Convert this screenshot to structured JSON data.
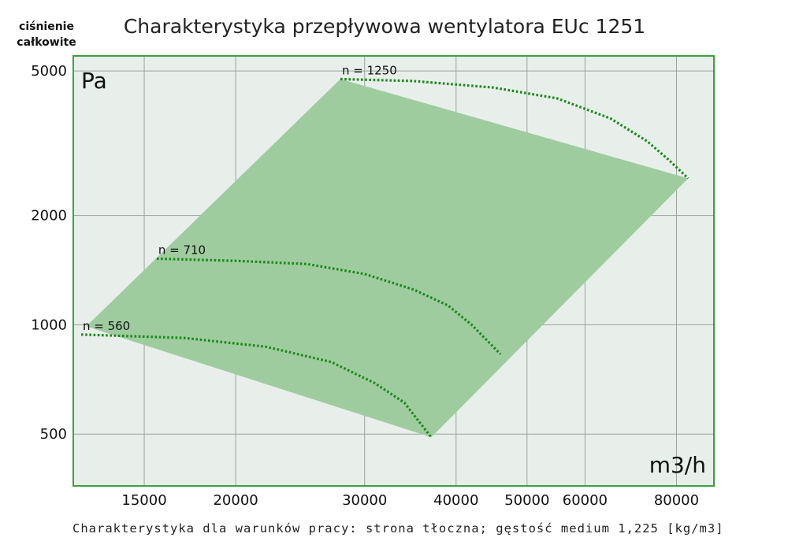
{
  "chart_data": {
    "type": "line",
    "title": "Charakterystyka przepływowa wentylatora EUc 1251",
    "ylabel_lines": [
      "ciśnienie",
      "całkowite"
    ],
    "y_unit": "Pa",
    "x_unit": "m3/h",
    "footnote": "Charakterystyka dla warunków pracy: strona tłoczna; gęstość medium 1,225 [kg/m3]",
    "x_scale": "log",
    "y_scale": "log",
    "xlim": [
      12000,
      90000
    ],
    "ylim": [
      360,
      5500
    ],
    "x_ticks": [
      {
        "value": 15000,
        "label": "15000"
      },
      {
        "value": 20000,
        "label": "20000"
      },
      {
        "value": 30000,
        "label": "30000"
      },
      {
        "value": 40000,
        "label": "40000"
      },
      {
        "value": 50000,
        "label": "50000"
      },
      {
        "value": 60000,
        "label": "60000"
      },
      {
        "value": 80000,
        "label": "80000"
      }
    ],
    "y_ticks": [
      {
        "value": 500,
        "label": "500"
      },
      {
        "value": 1000,
        "label": "1000"
      },
      {
        "value": 2000,
        "label": "2000"
      },
      {
        "value": 5000,
        "label": "5000"
      }
    ],
    "grid": true,
    "operating_region": {
      "color": "#9fcc9f",
      "points": [
        [
          12500,
          990
        ],
        [
          27800,
          4750
        ],
        [
          83000,
          2530
        ],
        [
          37000,
          490
        ]
      ]
    },
    "series": [
      {
        "name": "n = 560",
        "points": [
          [
            12300,
            940
          ],
          [
            17000,
            920
          ],
          [
            22000,
            870
          ],
          [
            27000,
            790
          ],
          [
            31000,
            690
          ],
          [
            34000,
            610
          ],
          [
            37000,
            490
          ]
        ]
      },
      {
        "name": "n = 710",
        "points": [
          [
            15600,
            1520
          ],
          [
            20000,
            1500
          ],
          [
            25000,
            1470
          ],
          [
            30000,
            1380
          ],
          [
            35000,
            1250
          ],
          [
            39000,
            1130
          ],
          [
            42000,
            1000
          ],
          [
            46000,
            830
          ]
        ]
      },
      {
        "name": "n = 1250",
        "points": [
          [
            27800,
            4750
          ],
          [
            35000,
            4690
          ],
          [
            45000,
            4500
          ],
          [
            55000,
            4200
          ],
          [
            65000,
            3700
          ],
          [
            73000,
            3200
          ],
          [
            78000,
            2850
          ],
          [
            83000,
            2530
          ]
        ]
      }
    ],
    "colors": {
      "curve": "#1a8a1a",
      "plot_bg": "#e8efea",
      "frame": "#3e9e3e",
      "grid": "#9aa39c"
    }
  }
}
